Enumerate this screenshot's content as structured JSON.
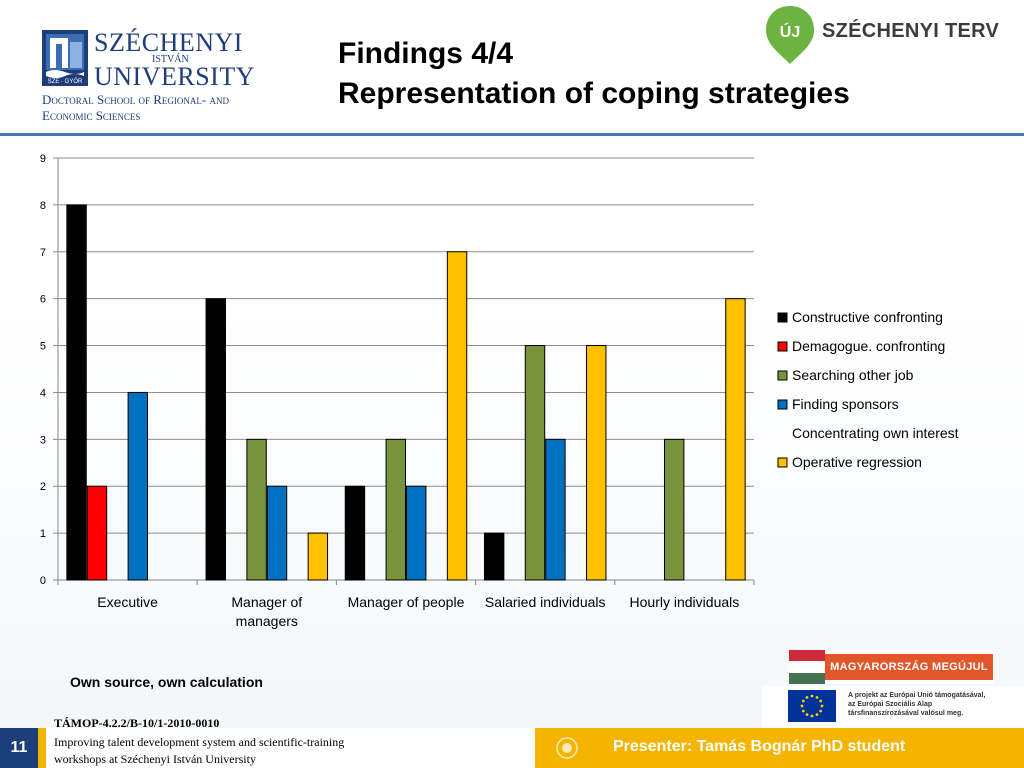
{
  "header": {
    "university_name_line1": "SZÉCHENYI",
    "university_name_small": "ISTVÁN",
    "university_name_line2": "UNIVERSITY",
    "crest_label": "SZE · GYŐR",
    "school_line1": "Doctoral School of Regional- and",
    "school_line2": "Economic Sciences",
    "title_line1": "Findings 4/4",
    "title_line2": "Representation of coping strategies",
    "terv_badge": "ÚJ",
    "terv_text": "SZÉCHENYI TERV"
  },
  "chart_data": {
    "type": "bar",
    "categories": [
      [
        "Executive"
      ],
      [
        "Manager of",
        "managers"
      ],
      [
        "Manager of people"
      ],
      [
        "Salaried individuals"
      ],
      [
        "Hourly individuals"
      ]
    ],
    "series": [
      {
        "name": "Constructive confronting",
        "color": "#000000",
        "values": [
          8,
          6,
          2,
          1,
          0
        ]
      },
      {
        "name": "Demagogue. confronting",
        "color": "#ff0000",
        "values": [
          2,
          0,
          0,
          0,
          0
        ]
      },
      {
        "name": "Searching other job",
        "color": "#77933c",
        "values": [
          0,
          3,
          3,
          5,
          3
        ]
      },
      {
        "name": "Finding sponsors",
        "color": "#0070c0",
        "values": [
          4,
          2,
          2,
          3,
          0
        ]
      },
      {
        "name": "Concentrating own interest",
        "color": "#ffffff",
        "values": [
          0,
          0,
          0,
          0,
          0
        ]
      },
      {
        "name": "Operative regression",
        "color": "#ffc000",
        "values": [
          0,
          1,
          7,
          5,
          6
        ]
      }
    ],
    "y_ticks": [
      0,
      1,
      2,
      3,
      4,
      5,
      6,
      7,
      8,
      9
    ],
    "ylim": [
      0,
      9
    ],
    "grid": true,
    "legend_position": "right"
  },
  "source_note": "Own source, own calculation",
  "badges": {
    "megujul": "MAGYARORSZÁG MEGÚJUL",
    "eu_line1": "A projekt az Európai Unió támogatásával,",
    "eu_line2": "az Európai Szociális Alap",
    "eu_line3": "társfinanszírozásával valósul meg."
  },
  "footer": {
    "slide_number": "11",
    "tamop": "TÁMOP-4.2.2/B-10/1-2010-0010",
    "project_line1": "Improving talent development system and scientific-training",
    "project_line2": "workshops at Széchenyi István University",
    "presenter": "Presenter: Tamás Bognár PhD student"
  }
}
